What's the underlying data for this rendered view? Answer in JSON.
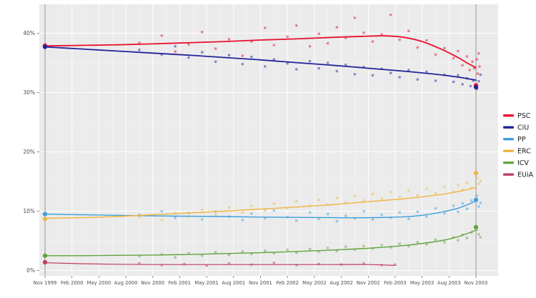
{
  "chart_data": {
    "type": "scatter",
    "title": "",
    "xlabel": "",
    "ylabel": "",
    "x_unit": "months_since_nov_1999",
    "x_tick_positions": [
      0,
      3,
      6,
      9,
      12,
      15,
      18,
      21,
      24,
      27,
      30,
      33,
      36,
      39,
      42,
      45,
      48
    ],
    "x_tick_labels": [
      "Nov 1999",
      "Feb 2000",
      "May 2000",
      "Aug 2000",
      "Nov 2000",
      "Feb 2001",
      "May 2001",
      "Aug 2001",
      "Nov 2001",
      "Feb 2002",
      "May 2002",
      "Aug 2002",
      "Nov 2002",
      "Feb 2003",
      "May 2003",
      "Aug 2003",
      "Nov 2003"
    ],
    "y_ticks": [
      0,
      10,
      20,
      30,
      40
    ],
    "y_tick_labels": [
      "0%",
      "10%",
      "20%",
      "30%",
      "40%"
    ],
    "y_minor_ticks": [
      5,
      15,
      25,
      35
    ],
    "ylim": [
      -1,
      45
    ],
    "xlim": [
      -0.7,
      50.5
    ],
    "grid": "white-on-gray",
    "panel_bg": "#ebebeb",
    "grid_color": "#ffffff",
    "tick_text_color": "#4d4d4d",
    "legend_text_color": "#1a1a1a",
    "election_date_lines_x": [
      0,
      48
    ],
    "election_line_color": "#9c9c9c",
    "legend_position": "right",
    "series": [
      {
        "name": "PSC",
        "color": "#e8112d",
        "line_width": 1.8,
        "trend": [
          [
            0,
            37.85
          ],
          [
            4,
            37.95
          ],
          [
            8,
            38.05
          ],
          [
            12,
            38.2
          ],
          [
            16,
            38.4
          ],
          [
            20,
            38.6
          ],
          [
            24,
            38.85
          ],
          [
            28,
            39.05
          ],
          [
            32,
            39.3
          ],
          [
            36,
            39.5
          ],
          [
            38,
            39.55
          ],
          [
            40,
            39.3
          ],
          [
            42,
            38.6
          ],
          [
            44,
            37.4
          ],
          [
            46,
            35.9
          ],
          [
            47,
            35.0
          ],
          [
            48,
            34.2
          ]
        ],
        "polls": [
          [
            10.5,
            38.4
          ],
          [
            13,
            39.6
          ],
          [
            14.5,
            36.9
          ],
          [
            16,
            38.1
          ],
          [
            17.5,
            40.2
          ],
          [
            19,
            37.4
          ],
          [
            20.5,
            39.0
          ],
          [
            22,
            36.2
          ],
          [
            23,
            38.6
          ],
          [
            24.5,
            40.9
          ],
          [
            25.5,
            38.0
          ],
          [
            27,
            39.4
          ],
          [
            28,
            41.3
          ],
          [
            29.5,
            37.8
          ],
          [
            30.5,
            39.9
          ],
          [
            31.5,
            38.3
          ],
          [
            32.5,
            41.0
          ],
          [
            33.5,
            39.2
          ],
          [
            34.5,
            42.6
          ],
          [
            35.5,
            40.1
          ],
          [
            36.5,
            38.6
          ],
          [
            37.5,
            39.8
          ],
          [
            38.5,
            43.1
          ],
          [
            39.5,
            38.9
          ],
          [
            40.5,
            40.4
          ],
          [
            41.5,
            37.6
          ],
          [
            42.5,
            38.8
          ],
          [
            43.5,
            36.4
          ],
          [
            44.5,
            37.5
          ],
          [
            45.5,
            35.8
          ],
          [
            46,
            37.0
          ],
          [
            46.5,
            34.6
          ],
          [
            47,
            36.1
          ],
          [
            47.3,
            33.8
          ],
          [
            47.6,
            35.2
          ],
          [
            47.8,
            34.1
          ],
          [
            48.1,
            35.6
          ],
          [
            48.2,
            33.2
          ],
          [
            48.3,
            36.6
          ],
          [
            48.4,
            34.4
          ]
        ],
        "elections": [
          [
            0,
            37.9
          ],
          [
            48,
            31.2
          ]
        ]
      },
      {
        "name": "CiU",
        "color": "#23239b",
        "line_width": 1.8,
        "trend": [
          [
            0,
            37.7
          ],
          [
            4,
            37.35
          ],
          [
            8,
            37.0
          ],
          [
            12,
            36.65
          ],
          [
            16,
            36.3
          ],
          [
            20,
            35.9
          ],
          [
            24,
            35.5
          ],
          [
            28,
            35.05
          ],
          [
            32,
            34.6
          ],
          [
            36,
            34.1
          ],
          [
            40,
            33.6
          ],
          [
            44,
            33.0
          ],
          [
            46,
            32.6
          ],
          [
            48,
            32.1
          ]
        ],
        "polls": [
          [
            10.5,
            37.2
          ],
          [
            13,
            36.4
          ],
          [
            14.5,
            37.8
          ],
          [
            16,
            35.9
          ],
          [
            17.5,
            36.8
          ],
          [
            19,
            35.2
          ],
          [
            20.5,
            36.3
          ],
          [
            22,
            34.8
          ],
          [
            23,
            36.0
          ],
          [
            24.5,
            34.4
          ],
          [
            25.5,
            35.6
          ],
          [
            27,
            34.9
          ],
          [
            28,
            33.9
          ],
          [
            29.5,
            35.3
          ],
          [
            30.5,
            34.1
          ],
          [
            31.5,
            35.0
          ],
          [
            32.5,
            33.6
          ],
          [
            33.5,
            34.7
          ],
          [
            34.5,
            33.1
          ],
          [
            35.5,
            34.3
          ],
          [
            36.5,
            32.9
          ],
          [
            37.5,
            34.0
          ],
          [
            38.5,
            33.3
          ],
          [
            39.5,
            32.6
          ],
          [
            40.5,
            33.8
          ],
          [
            41.5,
            32.2
          ],
          [
            42.5,
            33.5
          ],
          [
            43.5,
            32.0
          ],
          [
            44.5,
            33.0
          ],
          [
            45.5,
            31.8
          ],
          [
            46,
            32.9
          ],
          [
            46.5,
            31.4
          ],
          [
            47,
            32.4
          ],
          [
            47.4,
            31.1
          ],
          [
            47.7,
            32.0
          ],
          [
            48.1,
            30.6
          ],
          [
            48.3,
            31.9
          ],
          [
            48.5,
            33.0
          ]
        ],
        "elections": [
          [
            0,
            37.7
          ],
          [
            48,
            30.9
          ]
        ]
      },
      {
        "name": "PP",
        "color": "#3c9fdc",
        "line_width": 1.4,
        "trend": [
          [
            0,
            9.5
          ],
          [
            4,
            9.4
          ],
          [
            8,
            9.3
          ],
          [
            12,
            9.2
          ],
          [
            16,
            9.15
          ],
          [
            20,
            9.1
          ],
          [
            24,
            9.0
          ],
          [
            28,
            8.95
          ],
          [
            32,
            8.9
          ],
          [
            36,
            8.9
          ],
          [
            40,
            9.05
          ],
          [
            42,
            9.3
          ],
          [
            44,
            9.8
          ],
          [
            46,
            10.5
          ],
          [
            48,
            11.7
          ]
        ],
        "polls": [
          [
            10.5,
            9.4
          ],
          [
            13,
            10.0
          ],
          [
            14.5,
            8.9
          ],
          [
            16,
            9.7
          ],
          [
            17.5,
            8.6
          ],
          [
            19,
            9.9
          ],
          [
            20.5,
            9.1
          ],
          [
            22,
            8.5
          ],
          [
            23,
            9.6
          ],
          [
            24.5,
            8.8
          ],
          [
            25.5,
            10.1
          ],
          [
            27,
            9.0
          ],
          [
            28,
            8.4
          ],
          [
            29.5,
            9.8
          ],
          [
            30.5,
            8.7
          ],
          [
            31.5,
            9.5
          ],
          [
            32.5,
            8.3
          ],
          [
            33.5,
            9.2
          ],
          [
            34.5,
            8.8
          ],
          [
            35.5,
            10.0
          ],
          [
            36.5,
            8.6
          ],
          [
            37.5,
            9.4
          ],
          [
            38.5,
            8.9
          ],
          [
            39.5,
            9.8
          ],
          [
            40.5,
            8.7
          ],
          [
            41.5,
            9.9
          ],
          [
            42.5,
            9.1
          ],
          [
            43.5,
            10.5
          ],
          [
            44.5,
            9.6
          ],
          [
            45.5,
            10.9
          ],
          [
            46,
            9.9
          ],
          [
            46.5,
            11.3
          ],
          [
            47,
            10.4
          ],
          [
            47.5,
            11.8
          ],
          [
            48.1,
            12.6
          ],
          [
            48.3,
            10.8
          ],
          [
            48.5,
            11.4
          ]
        ],
        "elections": [
          [
            0,
            9.5
          ],
          [
            48,
            11.9
          ]
        ]
      },
      {
        "name": "ERC",
        "color": "#f0b43f",
        "line_width": 1.4,
        "trend": [
          [
            0,
            8.8
          ],
          [
            4,
            8.9
          ],
          [
            8,
            9.1
          ],
          [
            12,
            9.4
          ],
          [
            16,
            9.7
          ],
          [
            20,
            10.0
          ],
          [
            24,
            10.35
          ],
          [
            28,
            10.7
          ],
          [
            32,
            11.1
          ],
          [
            36,
            11.6
          ],
          [
            40,
            12.1
          ],
          [
            44,
            12.8
          ],
          [
            46,
            13.3
          ],
          [
            48,
            14.0
          ]
        ],
        "polls": [
          [
            10.5,
            9.0
          ],
          [
            13,
            8.5
          ],
          [
            14.5,
            9.7
          ],
          [
            16,
            9.1
          ],
          [
            17.5,
            10.2
          ],
          [
            19,
            9.4
          ],
          [
            20.5,
            10.6
          ],
          [
            22,
            9.8
          ],
          [
            23,
            10.9
          ],
          [
            24.5,
            10.1
          ],
          [
            25.5,
            11.3
          ],
          [
            27,
            10.5
          ],
          [
            28,
            11.7
          ],
          [
            29.5,
            10.9
          ],
          [
            30.5,
            11.9
          ],
          [
            31.5,
            11.1
          ],
          [
            32.5,
            12.2
          ],
          [
            33.5,
            11.5
          ],
          [
            34.5,
            12.6
          ],
          [
            35.5,
            11.8
          ],
          [
            36.5,
            12.9
          ],
          [
            37.5,
            12.1
          ],
          [
            38.5,
            13.2
          ],
          [
            39.5,
            12.4
          ],
          [
            40.5,
            13.5
          ],
          [
            41.5,
            12.7
          ],
          [
            42.5,
            13.8
          ],
          [
            43.5,
            13.0
          ],
          [
            44.5,
            14.1
          ],
          [
            45.5,
            13.3
          ],
          [
            46,
            14.4
          ],
          [
            46.5,
            13.6
          ],
          [
            47,
            14.8
          ],
          [
            47.5,
            13.9
          ],
          [
            48.1,
            15.6
          ],
          [
            48.3,
            14.6
          ],
          [
            48.5,
            15.1
          ]
        ],
        "elections": [
          [
            0,
            8.7
          ],
          [
            48,
            16.4
          ]
        ]
      },
      {
        "name": "ICV",
        "color": "#62a33c",
        "line_width": 1.4,
        "trend": [
          [
            0,
            2.5
          ],
          [
            4,
            2.5
          ],
          [
            8,
            2.55
          ],
          [
            12,
            2.6
          ],
          [
            16,
            2.7
          ],
          [
            20,
            2.85
          ],
          [
            24,
            3.0
          ],
          [
            28,
            3.2
          ],
          [
            32,
            3.45
          ],
          [
            36,
            3.75
          ],
          [
            40,
            4.2
          ],
          [
            44,
            5.0
          ],
          [
            46,
            5.7
          ],
          [
            48,
            6.8
          ]
        ],
        "polls": [
          [
            10.5,
            2.4
          ],
          [
            13,
            2.7
          ],
          [
            14.5,
            2.2
          ],
          [
            16,
            2.9
          ],
          [
            17.5,
            2.5
          ],
          [
            19,
            3.1
          ],
          [
            20.5,
            2.6
          ],
          [
            22,
            3.2
          ],
          [
            23,
            2.8
          ],
          [
            24.5,
            3.3
          ],
          [
            25.5,
            2.9
          ],
          [
            27,
            3.5
          ],
          [
            28,
            3.0
          ],
          [
            29.5,
            3.6
          ],
          [
            30.5,
            3.2
          ],
          [
            31.5,
            3.8
          ],
          [
            32.5,
            3.3
          ],
          [
            33.5,
            4.0
          ],
          [
            34.5,
            3.5
          ],
          [
            35.5,
            4.1
          ],
          [
            36.5,
            3.7
          ],
          [
            37.5,
            4.3
          ],
          [
            38.5,
            3.9
          ],
          [
            39.5,
            4.5
          ],
          [
            40.5,
            4.1
          ],
          [
            41.5,
            4.8
          ],
          [
            42.5,
            4.4
          ],
          [
            43.5,
            5.2
          ],
          [
            44.5,
            4.8
          ],
          [
            45.5,
            5.6
          ],
          [
            46,
            5.1
          ],
          [
            46.5,
            6.0
          ],
          [
            47,
            5.5
          ],
          [
            47.5,
            6.4
          ],
          [
            48.1,
            6.9
          ],
          [
            48.3,
            6.1
          ],
          [
            48.5,
            5.6
          ]
        ],
        "elections": [
          [
            0,
            2.5
          ],
          [
            48,
            7.3
          ]
        ]
      },
      {
        "name": "EUiA",
        "color": "#bd3d5e",
        "line_width": 1.2,
        "trend": [
          [
            0,
            1.3
          ],
          [
            4,
            1.15
          ],
          [
            8,
            1.05
          ],
          [
            12,
            1.0
          ],
          [
            16,
            1.0
          ],
          [
            20,
            1.0
          ],
          [
            24,
            1.0
          ],
          [
            28,
            1.0
          ],
          [
            32,
            1.0
          ],
          [
            36,
            1.0
          ],
          [
            39,
            0.85
          ]
        ],
        "polls": [
          [
            10.5,
            1.2
          ],
          [
            13,
            0.9
          ],
          [
            15.5,
            1.1
          ],
          [
            18,
            0.8
          ],
          [
            20.5,
            1.2
          ],
          [
            23,
            1.0
          ],
          [
            25.5,
            1.3
          ],
          [
            28,
            0.9
          ],
          [
            30.5,
            1.1
          ],
          [
            33,
            1.0
          ],
          [
            35.5,
            1.2
          ],
          [
            37.5,
            0.9
          ],
          [
            39,
            1.0
          ]
        ],
        "elections": [
          [
            0,
            1.4
          ]
        ]
      }
    ]
  }
}
